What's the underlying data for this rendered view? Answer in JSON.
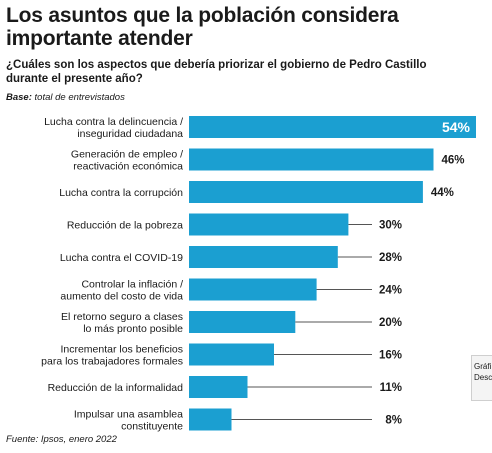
{
  "header": {
    "title": "Los asuntos que la población considera importante atender",
    "question": "¿Cuáles son los aspectos que debería priorizar el gobierno de Pedro Castillo durante el presente año?",
    "base_label": "Base:",
    "base_text": "total de entrevistados"
  },
  "footer": {
    "source": "Fuente: Ipsos, enero 2022"
  },
  "side_panel": {
    "line1": "Gráfi",
    "line2": "Desc"
  },
  "colors": {
    "bar": "#1b9fd1",
    "connector": "#555555"
  },
  "chart_data": {
    "type": "bar",
    "orientation": "horizontal",
    "categories": [
      [
        "Lucha contra la delincuencia /",
        "inseguridad ciudadana"
      ],
      [
        "Generación de empleo /",
        "reactivación económica"
      ],
      [
        "Lucha contra la corrupción"
      ],
      [
        "Reducción de la pobreza"
      ],
      [
        "Lucha contra el COVID-19"
      ],
      [
        "Controlar la inflación /",
        "aumento del costo de vida"
      ],
      [
        "El retorno seguro a clases",
        "lo más pronto posible"
      ],
      [
        "Incrementar los beneficios",
        "para los trabajadores formales"
      ],
      [
        "Reducción de la informalidad"
      ],
      [
        "Impulsar una asamblea",
        "constituyente"
      ]
    ],
    "values": [
      54,
      46,
      44,
      30,
      28,
      24,
      20,
      16,
      11,
      8
    ],
    "value_labels": [
      "54%",
      "46%",
      "44%",
      "30%",
      "28%",
      "24%",
      "20%",
      "16%",
      "11%",
      "8%"
    ],
    "unit": "%",
    "xlim": [
      0,
      54
    ],
    "grid": false,
    "legend": "none"
  }
}
